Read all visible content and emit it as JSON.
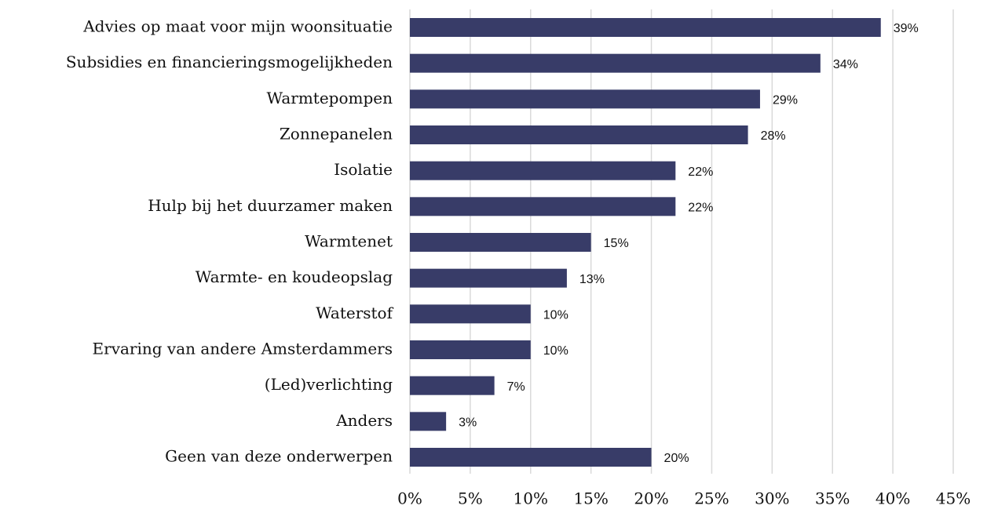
{
  "chart_data": {
    "type": "bar",
    "orientation": "horizontal",
    "categories": [
      "Advies op maat voor mijn woonsituatie",
      "Subsidies en financieringsmogelijkheden",
      "Warmtepompen",
      "Zonnepanelen",
      "Isolatie",
      "Hulp bij het duurzamer maken",
      "Warmtenet",
      "Warmte- en koudeopslag",
      "Waterstof",
      "Ervaring van andere Amsterdammers",
      "(Led)verlichting",
      "Anders",
      "Geen van deze onderwerpen"
    ],
    "values": [
      39,
      34,
      29,
      28,
      22,
      22,
      15,
      13,
      10,
      10,
      7,
      3,
      20
    ],
    "value_labels": [
      "39%",
      "34%",
      "29%",
      "28%",
      "22%",
      "22%",
      "15%",
      "13%",
      "10%",
      "10%",
      "7%",
      "3%",
      "20%"
    ],
    "color": "#383c68",
    "xlim": [
      0,
      45
    ],
    "xticks": [
      {
        "value": 0,
        "label": "0%"
      },
      {
        "value": 5,
        "label": "5%"
      },
      {
        "value": 10,
        "label": "10%"
      },
      {
        "value": 15,
        "label": "15%"
      },
      {
        "value": 20,
        "label": "20%"
      },
      {
        "value": 25,
        "label": "25%"
      },
      {
        "value": 30,
        "label": "30%"
      },
      {
        "value": 35,
        "label": "35%"
      },
      {
        "value": 40,
        "label": "40%"
      },
      {
        "value": 45,
        "label": "45%"
      }
    ],
    "grid": true
  }
}
